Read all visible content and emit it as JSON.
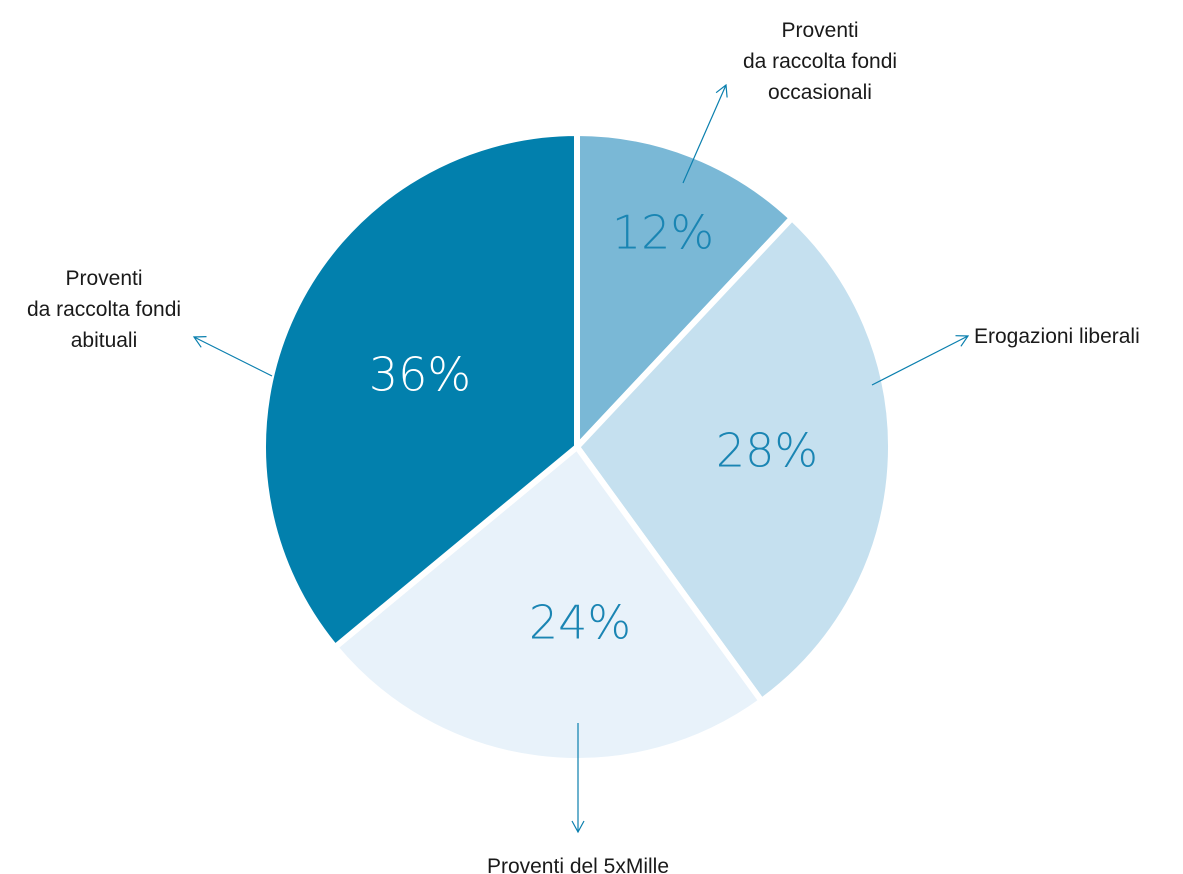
{
  "chart_data": {
    "type": "pie",
    "title": "",
    "unit": "%",
    "slices": [
      {
        "label_lines": [
          "Proventi",
          "da raccolta fondi",
          "occasionali"
        ],
        "value": 12,
        "value_label": "12%",
        "color": "#7ab8d6",
        "value_color": "#1a85b3"
      },
      {
        "label_lines": [
          "Erogazioni liberali"
        ],
        "value": 28,
        "value_label": "28%",
        "color": "#c5e0ef",
        "value_color": "#1a85b3"
      },
      {
        "label_lines": [
          "Proventi del 5xMille"
        ],
        "value": 24,
        "value_label": "24%",
        "color": "#e8f2fa",
        "value_color": "#1a85b3"
      },
      {
        "label_lines": [
          "Proventi",
          "da raccolta fondi",
          "abituali"
        ],
        "value": 36,
        "value_label": "36%",
        "color": "#0280ad",
        "value_color": "#ffffff"
      }
    ],
    "legend": "callouts",
    "colors": {
      "leader": "#0a7fae",
      "separator": "#ffffff"
    }
  }
}
